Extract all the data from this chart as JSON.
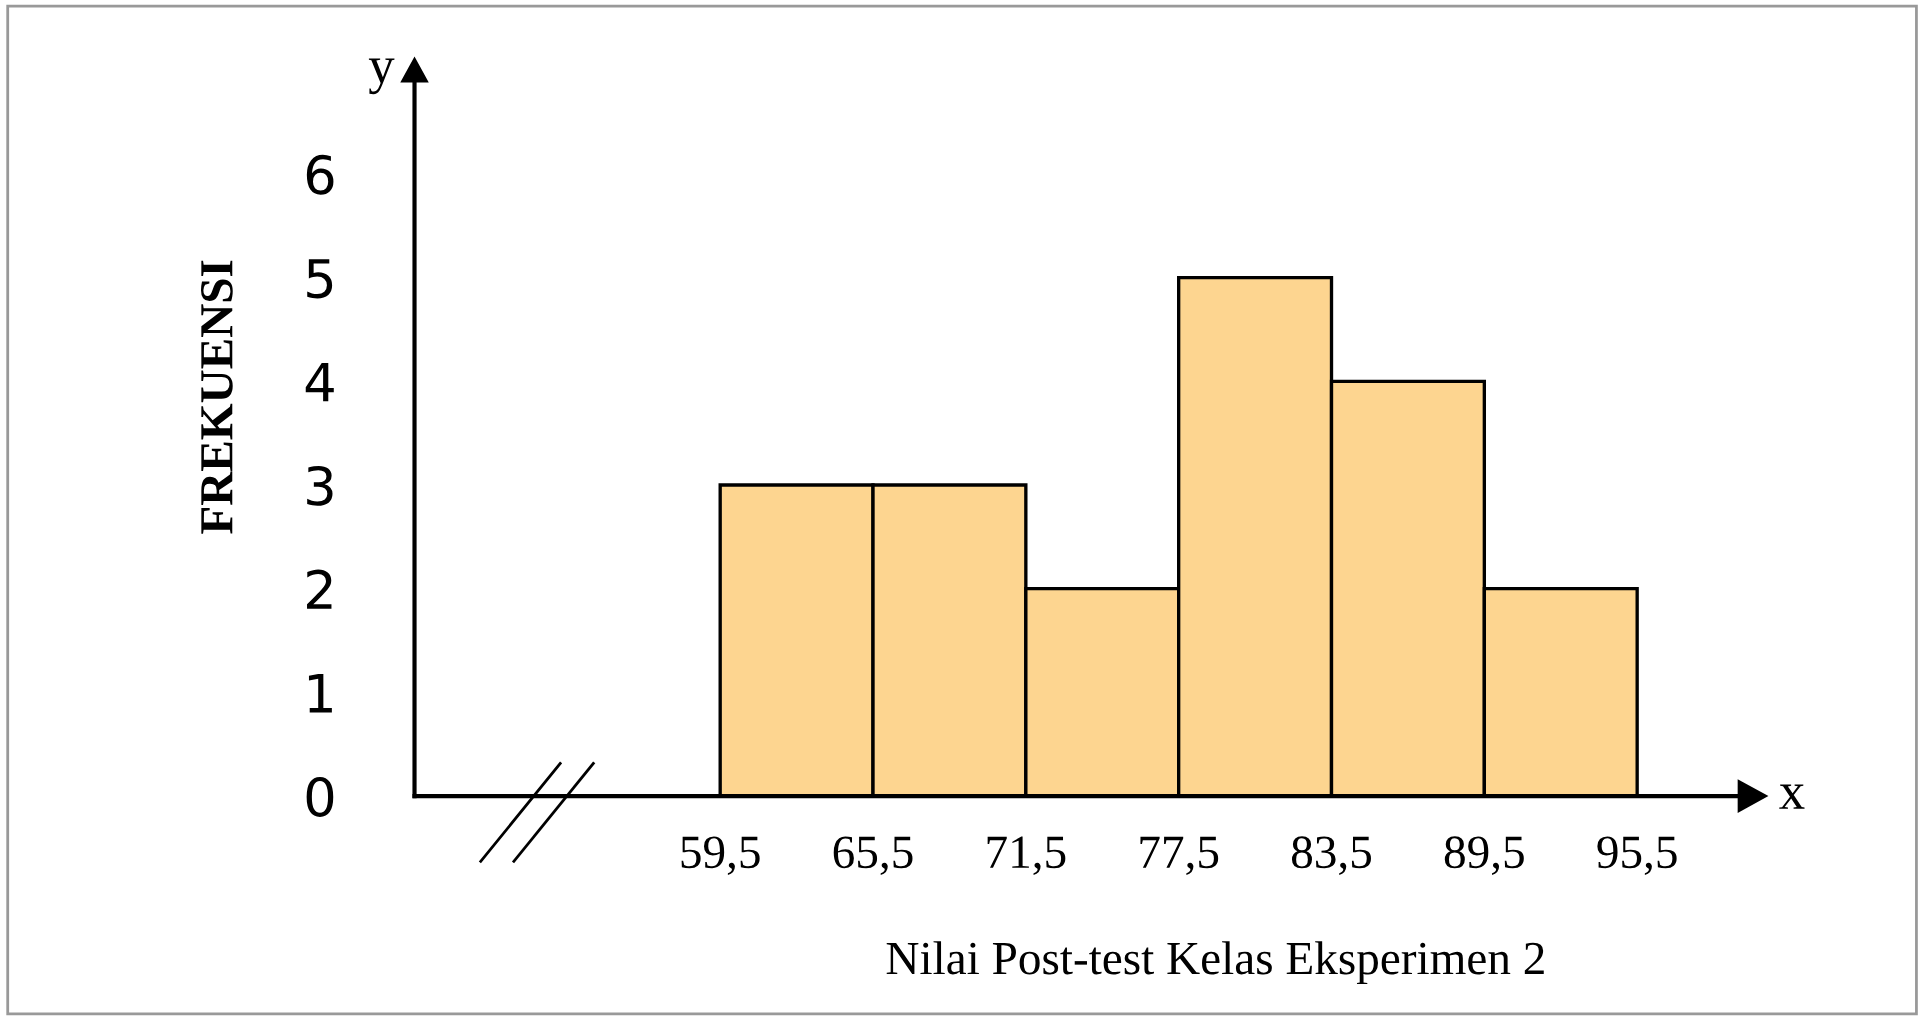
{
  "chart_data": {
    "type": "histogram",
    "xlabel": "Nilai Post-test Kelas Eksperimen 2",
    "ylabel": "FREKUENSI",
    "bins": [
      59.5,
      65.5,
      71.5,
      77.5,
      83.5,
      89.5,
      95.5
    ],
    "values": [
      3,
      3,
      2,
      5,
      4,
      2
    ],
    "color": "#fdd590",
    "xlim": [
      47.5,
      99.5
    ],
    "ylim": [
      0,
      7
    ],
    "xticks": [
      {
        "value": 59.5,
        "label": "59,5"
      },
      {
        "value": 65.5,
        "label": "65,5"
      },
      {
        "value": 71.5,
        "label": "71,5"
      },
      {
        "value": 77.5,
        "label": "77,5"
      },
      {
        "value": 83.5,
        "label": "83,5"
      },
      {
        "value": 89.5,
        "label": "89,5"
      },
      {
        "value": 95.5,
        "label": "95,5"
      }
    ],
    "yticks": [
      0,
      1,
      2,
      3,
      4,
      5,
      6
    ],
    "annotations": [
      "x",
      "y"
    ],
    "grid": false,
    "legend": false
  }
}
